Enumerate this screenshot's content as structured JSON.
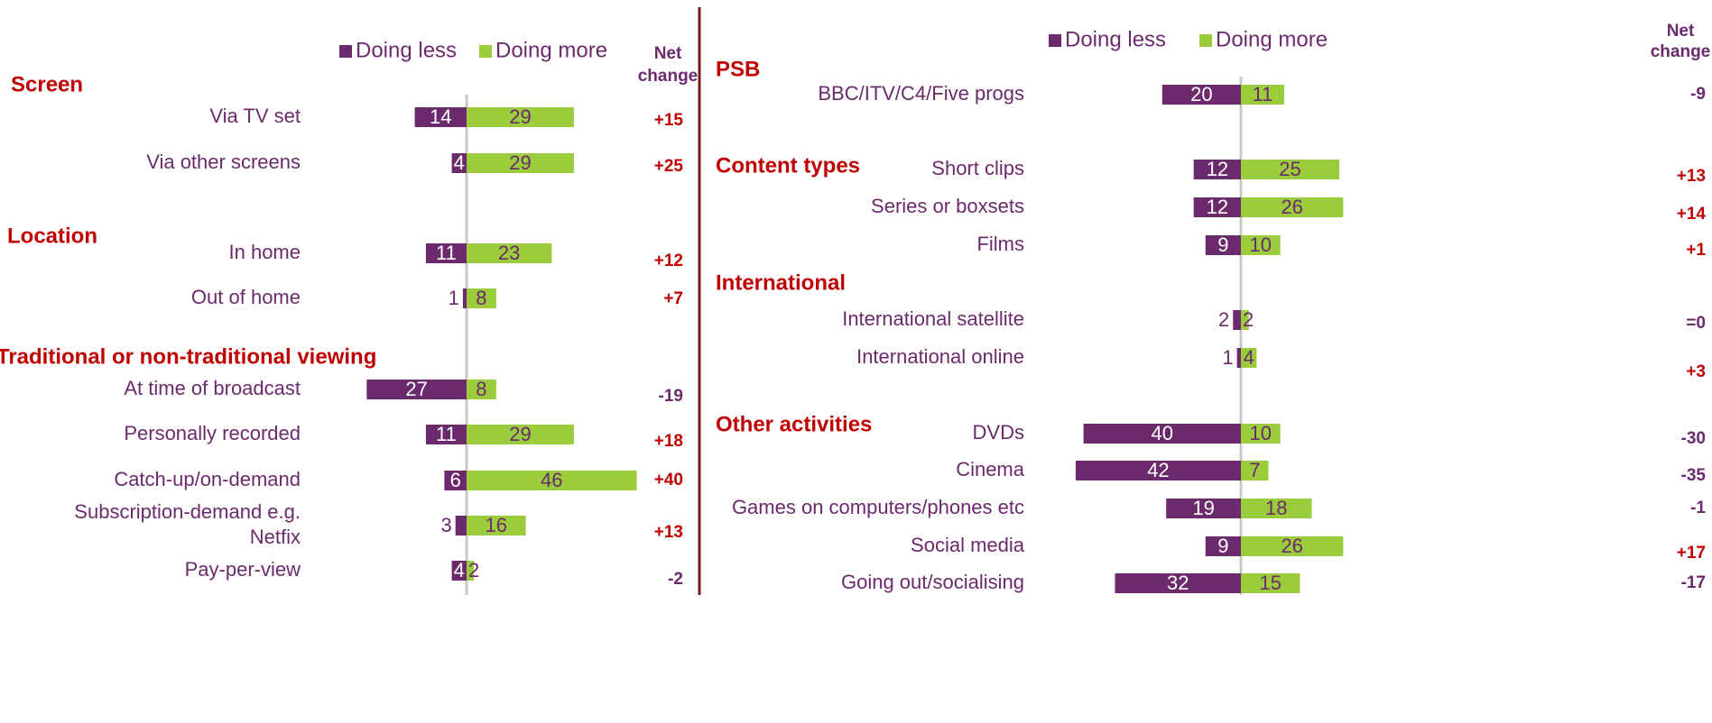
{
  "chart_data": [
    {
      "type": "diverging_bar",
      "groups": [
        {
          "title": "Screen",
          "categories": [
            "Via TV set",
            "Via other screens"
          ]
        },
        {
          "title": "Location",
          "categories": [
            "In home",
            "Out of home"
          ]
        },
        {
          "title": "Traditional or non-traditional viewing",
          "categories": [
            "At time of broadcast",
            "Personally recorded",
            "Catch-up/on-demand",
            "Subscription-demand e.g.\nNetfix",
            "Pay-per-view"
          ]
        }
      ],
      "series": [
        {
          "name": "Doing less",
          "color": "#6b2a6b",
          "values": [
            14,
            4,
            11,
            1,
            27,
            11,
            6,
            3,
            4
          ]
        },
        {
          "name": "Doing more",
          "color": "#9bcc3c",
          "values": [
            29,
            29,
            23,
            8,
            8,
            29,
            46,
            16,
            2
          ]
        }
      ],
      "net_change": {
        "title": "Net change",
        "values": [
          15,
          25,
          12,
          7,
          -19,
          18,
          40,
          13,
          -2
        ],
        "value_labels": [
          "+15",
          "+25",
          "+12",
          "+7",
          "-19",
          "+18",
          "+40",
          "+13",
          "-2"
        ]
      }
    },
    {
      "type": "diverging_bar",
      "groups": [
        {
          "title": "PSB",
          "categories": [
            "BBC/ITV/C4/Five progs"
          ]
        },
        {
          "title": "Content types",
          "categories": [
            "Short clips",
            "Series or boxsets",
            "Films"
          ]
        },
        {
          "title": "International",
          "categories": [
            "International satellite",
            "International online"
          ]
        },
        {
          "title": "Other activities",
          "categories": [
            "DVDs",
            "Cinema",
            "Games on computers/phones etc",
            "Social media",
            "Going out/socialising"
          ]
        }
      ],
      "series": [
        {
          "name": "Doing less",
          "color": "#6b2a6b",
          "values": [
            20,
            12,
            12,
            9,
            2,
            1,
            40,
            42,
            19,
            9,
            32
          ]
        },
        {
          "name": "Doing more",
          "color": "#9bcc3c",
          "values": [
            11,
            25,
            26,
            10,
            2,
            4,
            10,
            7,
            18,
            26,
            15
          ]
        }
      ],
      "net_change": {
        "title": "Net change",
        "values": [
          -9,
          13,
          14,
          1,
          0,
          3,
          -30,
          -35,
          -1,
          17,
          -17
        ],
        "value_labels": [
          "-9",
          "+13",
          "+14",
          "+1",
          "=0",
          "+3",
          "-30",
          "-35",
          "-1",
          "+17",
          "-17"
        ]
      }
    }
  ]
}
